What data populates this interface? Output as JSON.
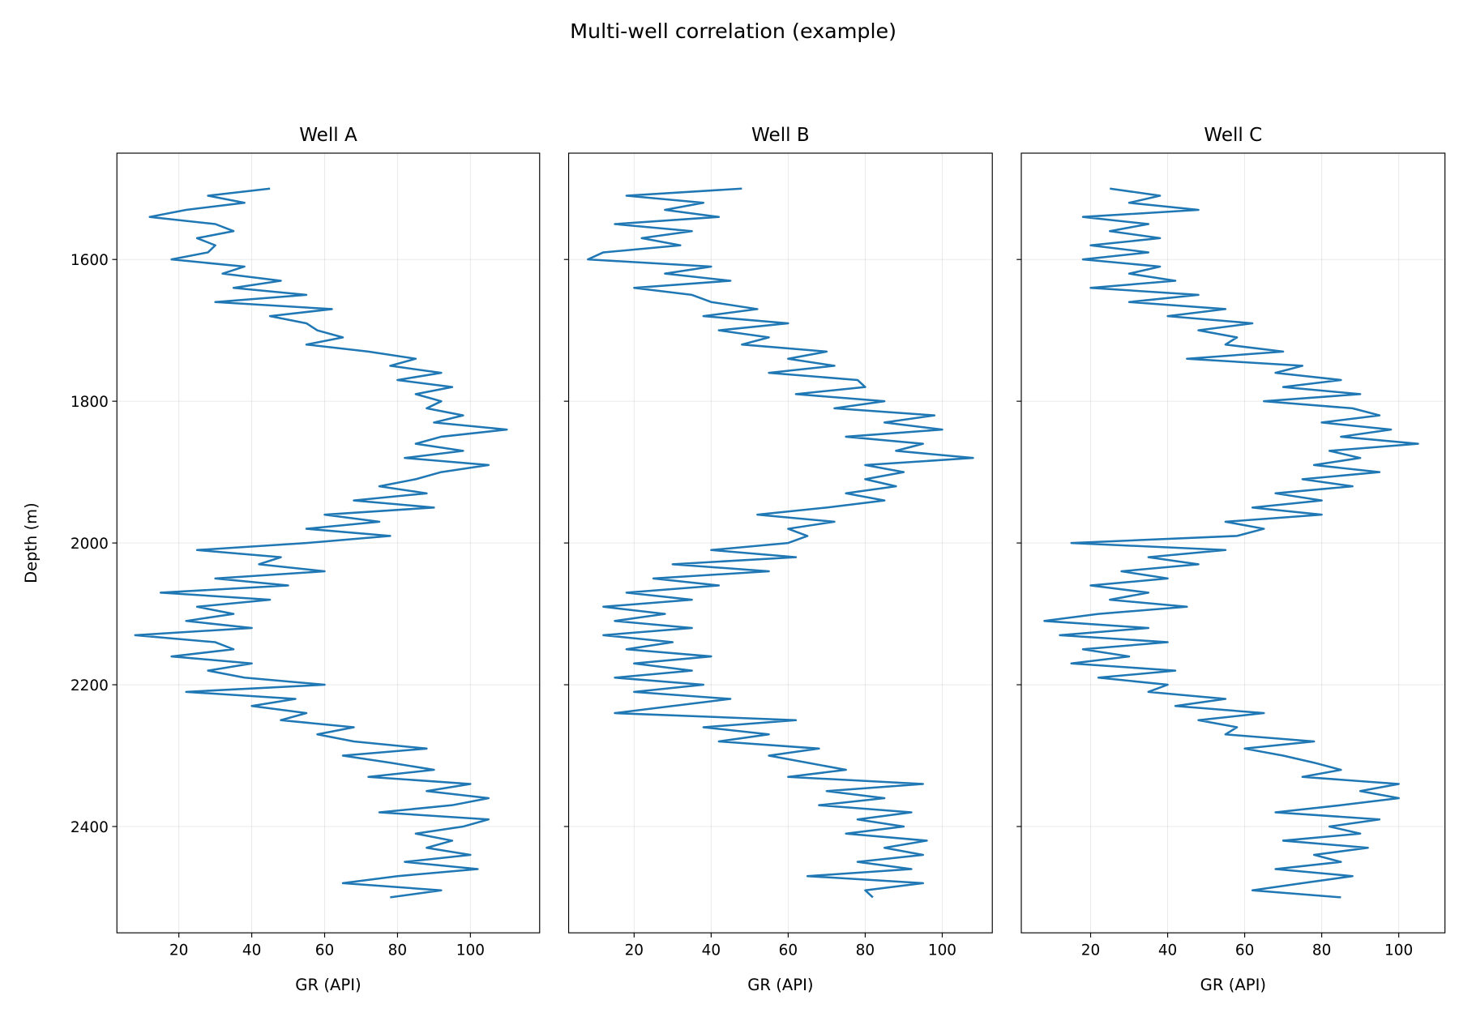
{
  "figure": {
    "title": "Multi-well correlation (example)"
  },
  "chart_data": [
    {
      "type": "line",
      "title": "Well A",
      "xlabel": "GR (API)",
      "ylabel": "Depth (m)",
      "xlim": [
        3,
        119
      ],
      "ylim": [
        2550,
        1450
      ],
      "y_inverted": true,
      "grid": true,
      "xticks": [
        20,
        40,
        60,
        80,
        100
      ],
      "yticks": [
        1600,
        1800,
        2000,
        2200,
        2400
      ],
      "color": "#1f77b4",
      "depth_start": 1500,
      "depth_step": 10,
      "values": [
        45,
        28,
        38,
        22,
        12,
        30,
        35,
        25,
        30,
        28,
        18,
        38,
        32,
        48,
        35,
        55,
        30,
        62,
        45,
        55,
        58,
        65,
        55,
        72,
        85,
        78,
        92,
        80,
        95,
        85,
        92,
        88,
        98,
        90,
        110,
        92,
        85,
        98,
        82,
        105,
        92,
        85,
        75,
        88,
        68,
        90,
        60,
        75,
        55,
        78,
        55,
        25,
        48,
        42,
        60,
        30,
        50,
        15,
        45,
        25,
        35,
        22,
        40,
        8,
        30,
        35,
        18,
        40,
        28,
        38,
        60,
        22,
        52,
        40,
        55,
        48,
        68,
        58,
        68,
        88,
        65,
        78,
        90,
        72,
        100,
        88,
        105,
        95,
        75,
        105,
        98,
        85,
        95,
        88,
        100,
        82,
        102,
        80,
        65,
        92,
        78
      ]
    },
    {
      "type": "line",
      "title": "Well B",
      "xlabel": "GR (API)",
      "xlim": [
        3,
        113
      ],
      "ylim": [
        2550,
        1450
      ],
      "y_inverted": true,
      "grid": true,
      "xticks": [
        20,
        40,
        60,
        80,
        100
      ],
      "yticks": [
        1600,
        1800,
        2000,
        2200,
        2400
      ],
      "color": "#1f77b4",
      "depth_start": 1500,
      "depth_step": 10,
      "values": [
        48,
        18,
        38,
        28,
        42,
        15,
        35,
        22,
        32,
        12,
        8,
        40,
        28,
        45,
        20,
        35,
        40,
        52,
        38,
        60,
        42,
        55,
        48,
        70,
        60,
        72,
        55,
        78,
        80,
        62,
        85,
        72,
        98,
        85,
        100,
        75,
        95,
        88,
        108,
        80,
        90,
        80,
        88,
        75,
        85,
        70,
        52,
        72,
        60,
        65,
        60,
        40,
        62,
        30,
        55,
        25,
        42,
        18,
        35,
        12,
        28,
        15,
        35,
        12,
        30,
        18,
        40,
        20,
        35,
        15,
        38,
        20,
        45,
        30,
        15,
        62,
        38,
        55,
        42,
        68,
        55,
        65,
        75,
        60,
        95,
        70,
        85,
        68,
        92,
        78,
        90,
        75,
        96,
        85,
        95,
        78,
        92,
        65,
        95,
        80,
        82
      ]
    },
    {
      "type": "line",
      "title": "Well C",
      "xlabel": "GR (API)",
      "xlim": [
        2,
        112
      ],
      "ylim": [
        2550,
        1450
      ],
      "y_inverted": true,
      "grid": true,
      "xticks": [
        20,
        40,
        60,
        80,
        100
      ],
      "yticks": [
        1600,
        1800,
        2000,
        2200,
        2400
      ],
      "color": "#1f77b4",
      "depth_start": 1500,
      "depth_step": 10,
      "values": [
        25,
        38,
        30,
        48,
        18,
        35,
        25,
        38,
        20,
        35,
        18,
        38,
        30,
        42,
        20,
        48,
        30,
        55,
        40,
        62,
        48,
        58,
        55,
        70,
        45,
        75,
        68,
        85,
        70,
        90,
        65,
        88,
        95,
        80,
        98,
        85,
        105,
        82,
        90,
        78,
        95,
        75,
        88,
        68,
        80,
        62,
        80,
        55,
        65,
        58,
        15,
        55,
        35,
        48,
        28,
        40,
        20,
        35,
        25,
        45,
        22,
        8,
        35,
        12,
        40,
        18,
        30,
        15,
        42,
        22,
        40,
        35,
        55,
        42,
        65,
        48,
        58,
        55,
        78,
        60,
        70,
        78,
        85,
        75,
        100,
        90,
        100,
        85,
        68,
        95,
        82,
        90,
        70,
        92,
        78,
        85,
        68,
        88,
        75,
        62,
        85
      ]
    }
  ]
}
